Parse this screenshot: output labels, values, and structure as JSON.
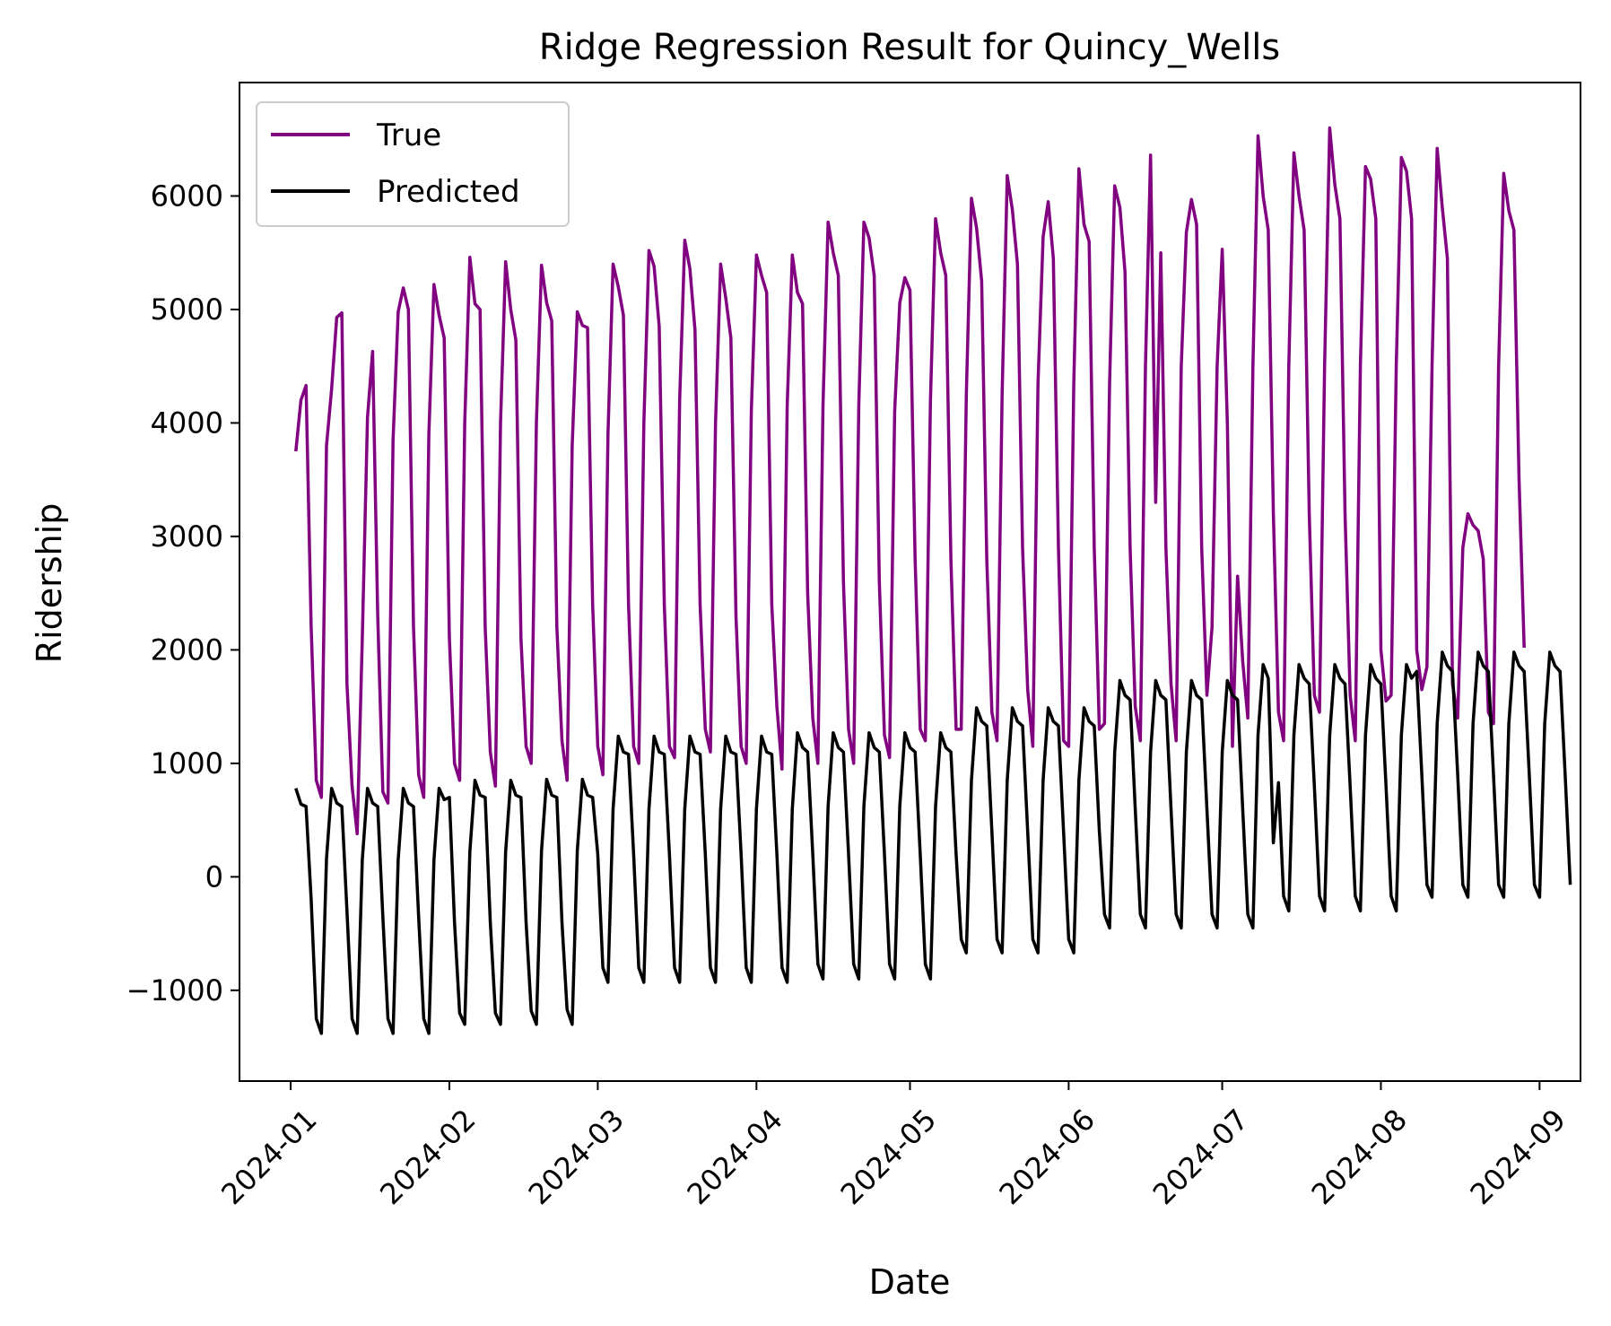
{
  "chart_data": {
    "type": "line",
    "title": "Ridge Regression Result for Quincy_Wells",
    "xlabel": "Date",
    "ylabel": "Ridership",
    "x_start": "2024-01-02",
    "x_end": "2024-08-31",
    "xlim": [
      "2023-12-22",
      "2024-09-09"
    ],
    "ylim": [
      -1800,
      7000
    ],
    "x_ticks": [
      "2024-01-01",
      "2024-02-01",
      "2024-03-01",
      "2024-04-01",
      "2024-05-01",
      "2024-06-01",
      "2024-07-01",
      "2024-08-01",
      "2024-09-01"
    ],
    "x_tick_labels": [
      "2024-01",
      "2024-02",
      "2024-03",
      "2024-04",
      "2024-05",
      "2024-06",
      "2024-07",
      "2024-08",
      "2024-09"
    ],
    "y_ticks": [
      -1000,
      0,
      1000,
      2000,
      3000,
      4000,
      5000,
      6000
    ],
    "y_tick_labels": [
      "−1000",
      "0",
      "1000",
      "2000",
      "3000",
      "4000",
      "5000",
      "6000"
    ],
    "legend": {
      "position": "top-left",
      "entries": [
        "True",
        "Predicted"
      ]
    },
    "grid": false,
    "series": [
      {
        "name": "True",
        "color": "#800080",
        "values": [
          3750,
          4200,
          4330,
          2200,
          850,
          700,
          3800,
          4300,
          4930,
          4970,
          1700,
          800,
          380,
          2100,
          4050,
          4630,
          2300,
          750,
          650,
          3850,
          4980,
          5190,
          5000,
          2200,
          900,
          700,
          3900,
          5220,
          4950,
          4750,
          2100,
          1000,
          850,
          4000,
          5460,
          5050,
          5000,
          2200,
          1100,
          800,
          4000,
          5420,
          5000,
          4730,
          2100,
          1150,
          1000,
          4000,
          5390,
          5060,
          4900,
          2200,
          1200,
          850,
          3800,
          4980,
          4860,
          4840,
          2400,
          1150,
          900,
          3900,
          5400,
          5200,
          4950,
          2400,
          1150,
          1000,
          4000,
          5520,
          5380,
          4850,
          2400,
          1150,
          1050,
          4200,
          5610,
          5360,
          4820,
          2400,
          1300,
          1100,
          4000,
          5400,
          5100,
          4750,
          2300,
          1150,
          1000,
          4100,
          5480,
          5300,
          5150,
          2400,
          1500,
          950,
          4150,
          5480,
          5150,
          5050,
          2500,
          1400,
          1000,
          4150,
          5770,
          5500,
          5300,
          2600,
          1300,
          1000,
          4150,
          5770,
          5630,
          5300,
          2600,
          1250,
          1050,
          4100,
          5060,
          5280,
          5170,
          2800,
          1300,
          1200,
          4200,
          5800,
          5500,
          5300,
          2800,
          1300,
          1300,
          4250,
          5980,
          5720,
          5250,
          2800,
          1450,
          1200,
          4250,
          6180,
          5880,
          5400,
          2900,
          1650,
          1150,
          4350,
          5640,
          5950,
          5450,
          2900,
          1200,
          1150,
          4350,
          6240,
          5750,
          5600,
          2900,
          1300,
          1350,
          4350,
          6090,
          5900,
          5330,
          2900,
          1500,
          1200,
          4500,
          6360,
          3300,
          5500,
          2900,
          1700,
          1200,
          4500,
          5680,
          5970,
          5750,
          2900,
          1600,
          2200,
          4500,
          5530,
          4000,
          1150,
          2650,
          1900,
          1400,
          4500,
          6530,
          6000,
          5700,
          3200,
          1450,
          1200,
          4500,
          6380,
          6000,
          5700,
          3200,
          1600,
          1450,
          4500,
          6600,
          6100,
          5800,
          3200,
          1600,
          1200,
          4500,
          6260,
          6150,
          5800,
          2000,
          1550,
          1600,
          4500,
          6340,
          6220,
          5800,
          2000,
          1650,
          1850,
          4500,
          6420,
          5900,
          5450,
          1700,
          1400,
          2900,
          3200,
          3100,
          3050,
          2800,
          1450,
          1350,
          4500,
          6200,
          5870,
          5700,
          3500,
          2020
        ]
      },
      {
        "name": "Predicted",
        "color": "#000000",
        "values": [
          780,
          640,
          620,
          -200,
          -1250,
          -1380,
          160,
          780,
          650,
          620,
          -300,
          -1250,
          -1380,
          150,
          780,
          650,
          620,
          -350,
          -1250,
          -1380,
          150,
          780,
          650,
          620,
          -350,
          -1250,
          -1380,
          150,
          780,
          680,
          700,
          -400,
          -1200,
          -1300,
          220,
          850,
          720,
          700,
          -400,
          -1200,
          -1300,
          220,
          850,
          720,
          700,
          -400,
          -1180,
          -1300,
          230,
          860,
          720,
          700,
          -400,
          -1170,
          -1300,
          230,
          860,
          720,
          700,
          200,
          -800,
          -930,
          600,
          1240,
          1100,
          1080,
          200,
          -800,
          -930,
          600,
          1240,
          1100,
          1080,
          200,
          -800,
          -930,
          600,
          1240,
          1100,
          1080,
          200,
          -800,
          -930,
          600,
          1240,
          1100,
          1080,
          200,
          -800,
          -930,
          600,
          1240,
          1100,
          1080,
          200,
          -800,
          -930,
          600,
          1270,
          1140,
          1100,
          200,
          -770,
          -900,
          620,
          1270,
          1140,
          1100,
          200,
          -770,
          -900,
          620,
          1270,
          1140,
          1100,
          200,
          -770,
          -900,
          620,
          1270,
          1140,
          1100,
          200,
          -770,
          -900,
          620,
          1270,
          1140,
          1100,
          200,
          -550,
          -670,
          850,
          1490,
          1370,
          1330,
          400,
          -550,
          -670,
          850,
          1490,
          1370,
          1330,
          400,
          -550,
          -670,
          850,
          1490,
          1370,
          1330,
          400,
          -550,
          -670,
          850,
          1490,
          1370,
          1330,
          400,
          -330,
          -450,
          1100,
          1730,
          1600,
          1560,
          600,
          -330,
          -450,
          1100,
          1730,
          1600,
          1560,
          600,
          -330,
          -450,
          1100,
          1730,
          1600,
          1560,
          600,
          -330,
          -450,
          1100,
          1730,
          1600,
          1560,
          600,
          -330,
          -450,
          1250,
          1870,
          1750,
          300,
          830,
          -170,
          -300,
          1250,
          1870,
          1750,
          1700,
          800,
          -170,
          -300,
          1250,
          1870,
          1750,
          1700,
          800,
          -170,
          -300,
          1250,
          1870,
          1750,
          1700,
          800,
          -170,
          -300,
          1250,
          1870,
          1750,
          1810,
          900,
          -70,
          -180,
          1350,
          1980,
          1860,
          1810,
          900,
          -70,
          -180,
          1350,
          1980,
          1860,
          1810,
          900,
          -70,
          -180,
          1350,
          1980,
          1860,
          1810,
          900,
          -70,
          -180,
          1350,
          1980,
          1860,
          1810,
          900,
          -70
        ]
      }
    ]
  }
}
